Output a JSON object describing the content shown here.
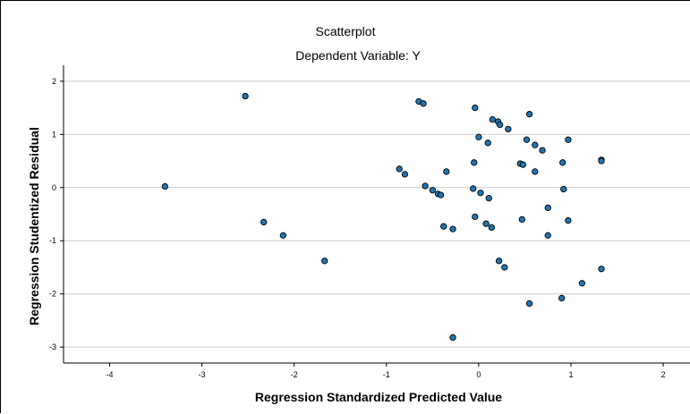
{
  "chart_data": {
    "type": "scatter",
    "title": "Scatterplot",
    "subtitle": "Dependent Variable: Y",
    "xlabel": "Regression Standardized Predicted Value",
    "ylabel": "Regression Studentized Residual",
    "xlim": [
      -4.5,
      2.3
    ],
    "ylim": [
      -3.3,
      2.3
    ],
    "xticks": [
      -4,
      -3,
      -2,
      -1,
      0,
      1,
      2
    ],
    "yticks": [
      -3,
      -2,
      -1,
      0,
      1,
      2
    ],
    "grid": "horizontal",
    "colors": {
      "marker_fill": "#1f77b4",
      "marker_edge": "#000000",
      "grid": "#c8c8c8"
    },
    "points": [
      {
        "x": -3.4,
        "y": 0.02
      },
      {
        "x": -2.53,
        "y": 1.72
      },
      {
        "x": -2.33,
        "y": -0.65
      },
      {
        "x": -2.12,
        "y": -0.9
      },
      {
        "x": -1.67,
        "y": -1.38
      },
      {
        "x": -0.86,
        "y": 0.35
      },
      {
        "x": -0.8,
        "y": 0.25
      },
      {
        "x": -0.65,
        "y": 1.62
      },
      {
        "x": -0.6,
        "y": 1.58
      },
      {
        "x": -0.58,
        "y": 0.03
      },
      {
        "x": -0.5,
        "y": -0.05
      },
      {
        "x": -0.44,
        "y": -0.12
      },
      {
        "x": -0.41,
        "y": -0.14
      },
      {
        "x": -0.38,
        "y": -0.73
      },
      {
        "x": -0.35,
        "y": 0.3
      },
      {
        "x": -0.28,
        "y": -0.78
      },
      {
        "x": -0.28,
        "y": -2.82
      },
      {
        "x": -0.06,
        "y": -0.02
      },
      {
        "x": -0.04,
        "y": 1.5
      },
      {
        "x": -0.05,
        "y": 0.47
      },
      {
        "x": -0.04,
        "y": -0.55
      },
      {
        "x": 0.0,
        "y": 0.95
      },
      {
        "x": 0.02,
        "y": -0.1
      },
      {
        "x": 0.08,
        "y": -0.68
      },
      {
        "x": 0.1,
        "y": 0.84
      },
      {
        "x": 0.11,
        "y": -0.2
      },
      {
        "x": 0.14,
        "y": -0.75
      },
      {
        "x": 0.15,
        "y": 1.28
      },
      {
        "x": 0.21,
        "y": 1.24
      },
      {
        "x": 0.23,
        "y": 1.18
      },
      {
        "x": 0.22,
        "y": -1.38
      },
      {
        "x": 0.28,
        "y": -1.5
      },
      {
        "x": 0.32,
        "y": 1.1
      },
      {
        "x": 0.45,
        "y": 0.45
      },
      {
        "x": 0.48,
        "y": 0.43
      },
      {
        "x": 0.47,
        "y": -0.6
      },
      {
        "x": 0.52,
        "y": 0.9
      },
      {
        "x": 0.55,
        "y": 1.38
      },
      {
        "x": 0.55,
        "y": -2.18
      },
      {
        "x": 0.61,
        "y": 0.8
      },
      {
        "x": 0.61,
        "y": 0.3
      },
      {
        "x": 0.69,
        "y": 0.7
      },
      {
        "x": 0.75,
        "y": -0.38
      },
      {
        "x": 0.75,
        "y": -0.9
      },
      {
        "x": 0.91,
        "y": 0.47
      },
      {
        "x": 0.92,
        "y": -0.03
      },
      {
        "x": 0.9,
        "y": -2.08
      },
      {
        "x": 0.97,
        "y": 0.9
      },
      {
        "x": 0.97,
        "y": -0.62
      },
      {
        "x": 1.12,
        "y": -1.8
      },
      {
        "x": 1.33,
        "y": 0.52
      },
      {
        "x": 1.33,
        "y": 0.5
      },
      {
        "x": 1.33,
        "y": -1.53
      }
    ]
  }
}
